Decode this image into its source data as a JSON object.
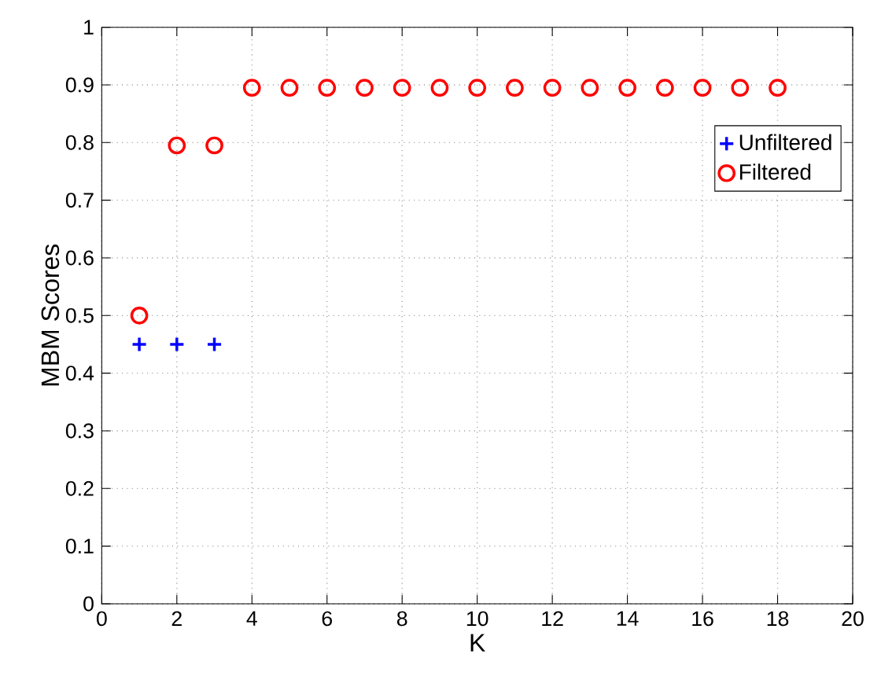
{
  "chart_data": {
    "type": "scatter",
    "xlabel": "K",
    "ylabel": "MBM Scores",
    "xlim": [
      0,
      20
    ],
    "xticks": [
      0,
      2,
      4,
      6,
      8,
      10,
      12,
      14,
      16,
      18,
      20
    ],
    "ylim": [
      0,
      1
    ],
    "yticks": [
      0,
      0.1,
      0.2,
      0.3,
      0.4,
      0.5,
      0.6,
      0.7,
      0.8,
      0.9,
      1
    ],
    "grid": true,
    "legend": "top right",
    "series": [
      {
        "name": "Unfiltered",
        "color": "#0000ff",
        "marker": "cross",
        "x": [
          1,
          2,
          3
        ],
        "values": [
          0.45,
          0.45,
          0.45
        ]
      },
      {
        "name": "Filtered",
        "color": "#ff0000",
        "marker": "circle",
        "x": [
          1,
          2,
          3,
          4,
          5,
          6,
          7,
          8,
          9,
          10,
          11,
          12,
          13,
          14,
          15,
          16,
          17,
          18
        ],
        "values": [
          0.5,
          0.795,
          0.795,
          0.895,
          0.895,
          0.895,
          0.895,
          0.895,
          0.895,
          0.895,
          0.895,
          0.895,
          0.895,
          0.895,
          0.895,
          0.895,
          0.895,
          0.895
        ]
      }
    ]
  }
}
